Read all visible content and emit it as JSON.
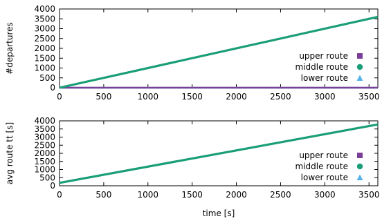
{
  "chart_data": [
    {
      "type": "line",
      "title": "",
      "xlabel": "",
      "ylabel": "#departures",
      "xlim": [
        0,
        3600
      ],
      "ylim": [
        0,
        4000
      ],
      "xticks": [
        0,
        500,
        1000,
        1500,
        2000,
        2500,
        3000,
        3500
      ],
      "yticks": [
        0,
        500,
        1000,
        1500,
        2000,
        2500,
        3000,
        3500,
        4000
      ],
      "grid": false,
      "legend_position": "right",
      "series": [
        {
          "name": "upper route",
          "color": "#7b3f98",
          "marker": "square",
          "x": [
            0,
            3600
          ],
          "y": [
            0,
            0
          ]
        },
        {
          "name": "middle route",
          "color": "#1a9e77",
          "marker": "circle",
          "x": [
            0,
            3600
          ],
          "y": [
            0,
            3600
          ]
        },
        {
          "name": "lower route",
          "color": "#56b4e9",
          "marker": "triangle",
          "x": [
            0,
            3600
          ],
          "y": [
            0,
            0
          ]
        }
      ]
    },
    {
      "type": "line",
      "title": "",
      "xlabel": "time [s]",
      "ylabel": "avg route tt [s]",
      "xlim": [
        0,
        3600
      ],
      "ylim": [
        0,
        4000
      ],
      "xticks": [
        0,
        500,
        1000,
        1500,
        2000,
        2500,
        3000,
        3500
      ],
      "yticks": [
        0,
        500,
        1000,
        1500,
        2000,
        2500,
        3000,
        3500,
        4000
      ],
      "grid": false,
      "legend_position": "right",
      "series": [
        {
          "name": "upper route",
          "color": "#7b3f98",
          "marker": "square",
          "x": [],
          "y": []
        },
        {
          "name": "middle route",
          "color": "#1a9e77",
          "marker": "circle",
          "x": [
            0,
            3600
          ],
          "y": [
            180,
            3780
          ]
        },
        {
          "name": "lower route",
          "color": "#56b4e9",
          "marker": "triangle",
          "x": [],
          "y": []
        }
      ]
    }
  ]
}
